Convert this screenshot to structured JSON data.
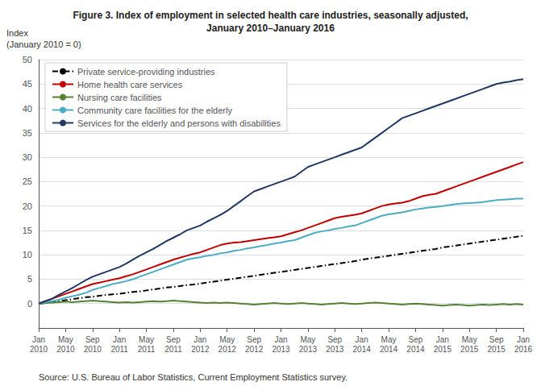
{
  "chart_data": {
    "type": "line",
    "title": "Figure 3. Index of employment in selected health care industries, seasonally adjusted,\nJanuary 2010–January 2016",
    "ylabel": "Index\n(January 2010 = 0)",
    "annotations": [
      "Source: U.S. Bureau of Labor Statistics, Current Employment Statistics survey."
    ],
    "categories": [
      "Jan\n2010",
      null,
      null,
      null,
      "May\n2010",
      null,
      null,
      null,
      "Sep\n2010",
      null,
      null,
      null,
      "Jan\n2011",
      null,
      null,
      null,
      "May\n2011",
      null,
      null,
      null,
      "Sep\n2011",
      null,
      null,
      null,
      "Jan\n2012",
      null,
      null,
      null,
      "May\n2012",
      null,
      null,
      null,
      "Sep\n2012",
      null,
      null,
      null,
      "Jan\n2013",
      null,
      null,
      null,
      "May\n2013",
      null,
      null,
      null,
      "Sep\n2013",
      null,
      null,
      null,
      "Jan\n2014",
      null,
      null,
      null,
      "May\n2014",
      null,
      null,
      null,
      "Sep\n2014",
      null,
      null,
      null,
      "Jan\n2015",
      null,
      null,
      null,
      "May\n2015",
      null,
      null,
      null,
      "Sep\n2015",
      null,
      null,
      null,
      "Jan\n2016"
    ],
    "series": [
      {
        "name": "Private service-providing industries",
        "color": "#000000",
        "line_style": "dashdot",
        "values": [
          0.0,
          0.1,
          0.3,
          0.5,
          0.7,
          0.9,
          1.1,
          1.3,
          1.4,
          1.6,
          1.8,
          1.9,
          2.0,
          2.2,
          2.4,
          2.5,
          2.7,
          2.9,
          3.1,
          3.3,
          3.4,
          3.6,
          3.8,
          3.9,
          4.1,
          4.3,
          4.5,
          4.7,
          4.9,
          5.1,
          5.3,
          5.5,
          5.7,
          5.9,
          6.1,
          6.3,
          6.5,
          6.7,
          6.9,
          7.1,
          7.3,
          7.5,
          7.7,
          7.9,
          8.1,
          8.3,
          8.5,
          8.7,
          9.0,
          9.2,
          9.4,
          9.6,
          9.8,
          10.0,
          10.2,
          10.4,
          10.6,
          10.8,
          11.0,
          11.2,
          11.5,
          11.7,
          11.9,
          12.1,
          12.3,
          12.5,
          12.7,
          12.9,
          13.1,
          13.3,
          13.5,
          13.7,
          13.9
        ]
      },
      {
        "name": "Home health care services",
        "color": "#c00000",
        "line_style": "solid",
        "values": [
          0.0,
          0.5,
          1.0,
          1.5,
          2.0,
          2.5,
          3.0,
          3.5,
          4.0,
          4.3,
          4.6,
          4.9,
          5.2,
          5.6,
          6.0,
          6.5,
          7.0,
          7.5,
          8.0,
          8.5,
          9.0,
          9.4,
          9.8,
          10.2,
          10.5,
          11.0,
          11.5,
          12.0,
          12.3,
          12.5,
          12.6,
          12.8,
          13.0,
          13.2,
          13.4,
          13.6,
          13.8,
          14.2,
          14.6,
          15.0,
          15.5,
          16.0,
          16.5,
          17.0,
          17.5,
          17.8,
          18.0,
          18.2,
          18.5,
          19.0,
          19.5,
          20.0,
          20.3,
          20.5,
          20.7,
          21.0,
          21.5,
          22.0,
          22.3,
          22.5,
          23.0,
          23.5,
          24.0,
          24.5,
          25.0,
          25.5,
          26.0,
          26.5,
          27.0,
          27.5,
          28.0,
          28.5,
          29.0
        ]
      },
      {
        "name": "Nursing care facilities",
        "color": "#548235",
        "line_style": "solid",
        "values": [
          0.0,
          0.1,
          0.2,
          0.3,
          0.4,
          0.3,
          0.4,
          0.5,
          0.6,
          0.5,
          0.4,
          0.3,
          0.2,
          0.3,
          0.2,
          0.3,
          0.4,
          0.5,
          0.4,
          0.5,
          0.6,
          0.5,
          0.4,
          0.3,
          0.2,
          0.1,
          0.2,
          0.1,
          0.2,
          0.1,
          0.0,
          -0.1,
          -0.2,
          -0.1,
          0.0,
          0.1,
          0.0,
          -0.1,
          0.0,
          0.1,
          0.0,
          -0.1,
          -0.2,
          -0.1,
          0.0,
          0.1,
          0.0,
          -0.1,
          0.0,
          0.1,
          0.2,
          0.1,
          0.0,
          -0.1,
          -0.2,
          -0.1,
          0.0,
          -0.1,
          -0.2,
          -0.3,
          -0.4,
          -0.3,
          -0.2,
          -0.3,
          -0.4,
          -0.3,
          -0.2,
          -0.3,
          -0.2,
          -0.1,
          -0.2,
          -0.1,
          -0.2
        ]
      },
      {
        "name": "Community care facilities for the elderly",
        "color": "#4bacc6",
        "line_style": "solid",
        "values": [
          0.0,
          0.3,
          0.5,
          0.8,
          1.2,
          1.5,
          1.8,
          2.2,
          2.8,
          3.2,
          3.6,
          4.0,
          4.3,
          4.6,
          5.0,
          5.5,
          6.0,
          6.5,
          7.0,
          7.5,
          8.0,
          8.5,
          9.0,
          9.3,
          9.5,
          9.8,
          10.0,
          10.3,
          10.5,
          10.8,
          11.0,
          11.3,
          11.5,
          11.8,
          12.0,
          12.3,
          12.5,
          12.8,
          13.0,
          13.5,
          14.0,
          14.5,
          14.8,
          15.0,
          15.3,
          15.5,
          15.8,
          16.0,
          16.5,
          17.0,
          17.5,
          18.0,
          18.3,
          18.5,
          18.7,
          19.0,
          19.3,
          19.5,
          19.7,
          19.8,
          20.0,
          20.2,
          20.4,
          20.5,
          20.6,
          20.7,
          20.8,
          21.0,
          21.2,
          21.3,
          21.4,
          21.5,
          21.5
        ]
      },
      {
        "name": "Services for the elderly and persons with disabilities",
        "color": "#1f3864",
        "line_style": "solid",
        "values": [
          0.0,
          0.5,
          1.0,
          1.8,
          2.5,
          3.2,
          4.0,
          4.8,
          5.5,
          6.0,
          6.5,
          7.0,
          7.5,
          8.2,
          9.0,
          9.8,
          10.5,
          11.2,
          12.0,
          12.8,
          13.5,
          14.2,
          15.0,
          15.5,
          16.0,
          16.8,
          17.5,
          18.2,
          19.0,
          20.0,
          21.0,
          22.0,
          23.0,
          23.5,
          24.0,
          24.5,
          25.0,
          25.5,
          26.0,
          27.0,
          28.0,
          28.5,
          29.0,
          29.5,
          30.0,
          30.5,
          31.0,
          31.5,
          32.0,
          33.0,
          34.0,
          35.0,
          36.0,
          37.0,
          38.0,
          38.5,
          39.0,
          39.5,
          40.0,
          40.5,
          41.0,
          41.5,
          42.0,
          42.5,
          43.0,
          43.5,
          44.0,
          44.5,
          45.0,
          45.3,
          45.5,
          45.8,
          46.0
        ]
      }
    ],
    "ylim": [
      -5,
      50
    ],
    "yticks": [
      0,
      5,
      10,
      15,
      20,
      25,
      30,
      35,
      40,
      45,
      50
    ],
    "grid": true,
    "legend": "upper left"
  }
}
